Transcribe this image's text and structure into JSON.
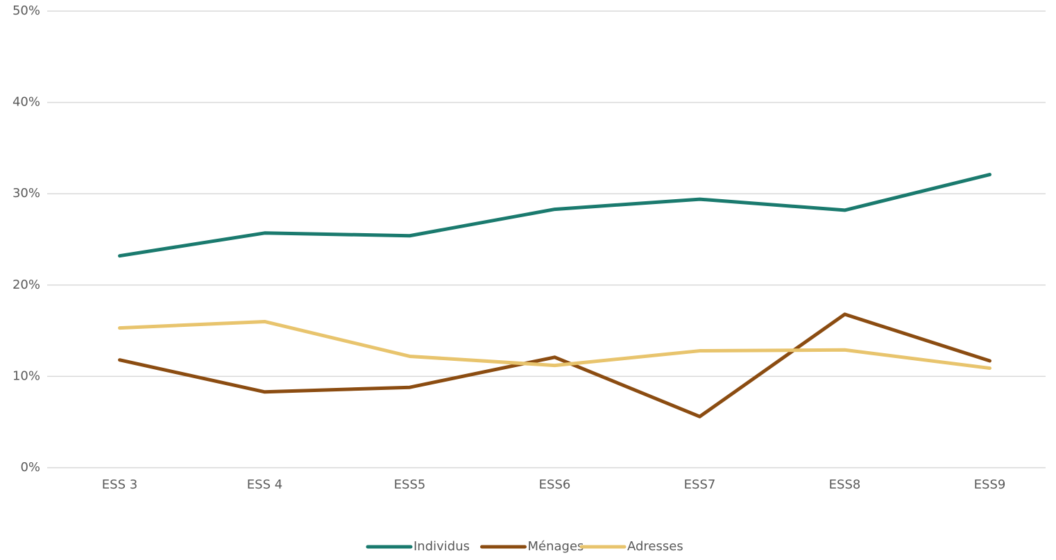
{
  "chart_data": {
    "type": "line",
    "categories": [
      "ESS 3",
      "ESS 4",
      "ESS5",
      "ESS6",
      "ESS7",
      "ESS8",
      "ESS9"
    ],
    "series": [
      {
        "name": "Individus",
        "color": "#1a7a6e",
        "values": [
          23.2,
          25.7,
          25.4,
          28.3,
          29.4,
          28.2,
          32.1
        ]
      },
      {
        "name": "Ménages",
        "color": "#8b4c11",
        "values": [
          11.8,
          8.3,
          8.8,
          12.1,
          5.6,
          16.8,
          11.7
        ]
      },
      {
        "name": "Adresses",
        "color": "#e8c46d",
        "values": [
          15.3,
          16.0,
          12.2,
          11.2,
          12.8,
          12.9,
          10.9
        ]
      }
    ],
    "ylim": [
      0,
      50
    ],
    "yticks": [
      {
        "value": 0,
        "label": "0%"
      },
      {
        "value": 10,
        "label": "10%"
      },
      {
        "value": 20,
        "label": "20%"
      },
      {
        "value": 30,
        "label": "30%"
      },
      {
        "value": 40,
        "label": "40%"
      },
      {
        "value": 50,
        "label": "50%"
      }
    ],
    "grid": true,
    "legend": "bottom"
  }
}
